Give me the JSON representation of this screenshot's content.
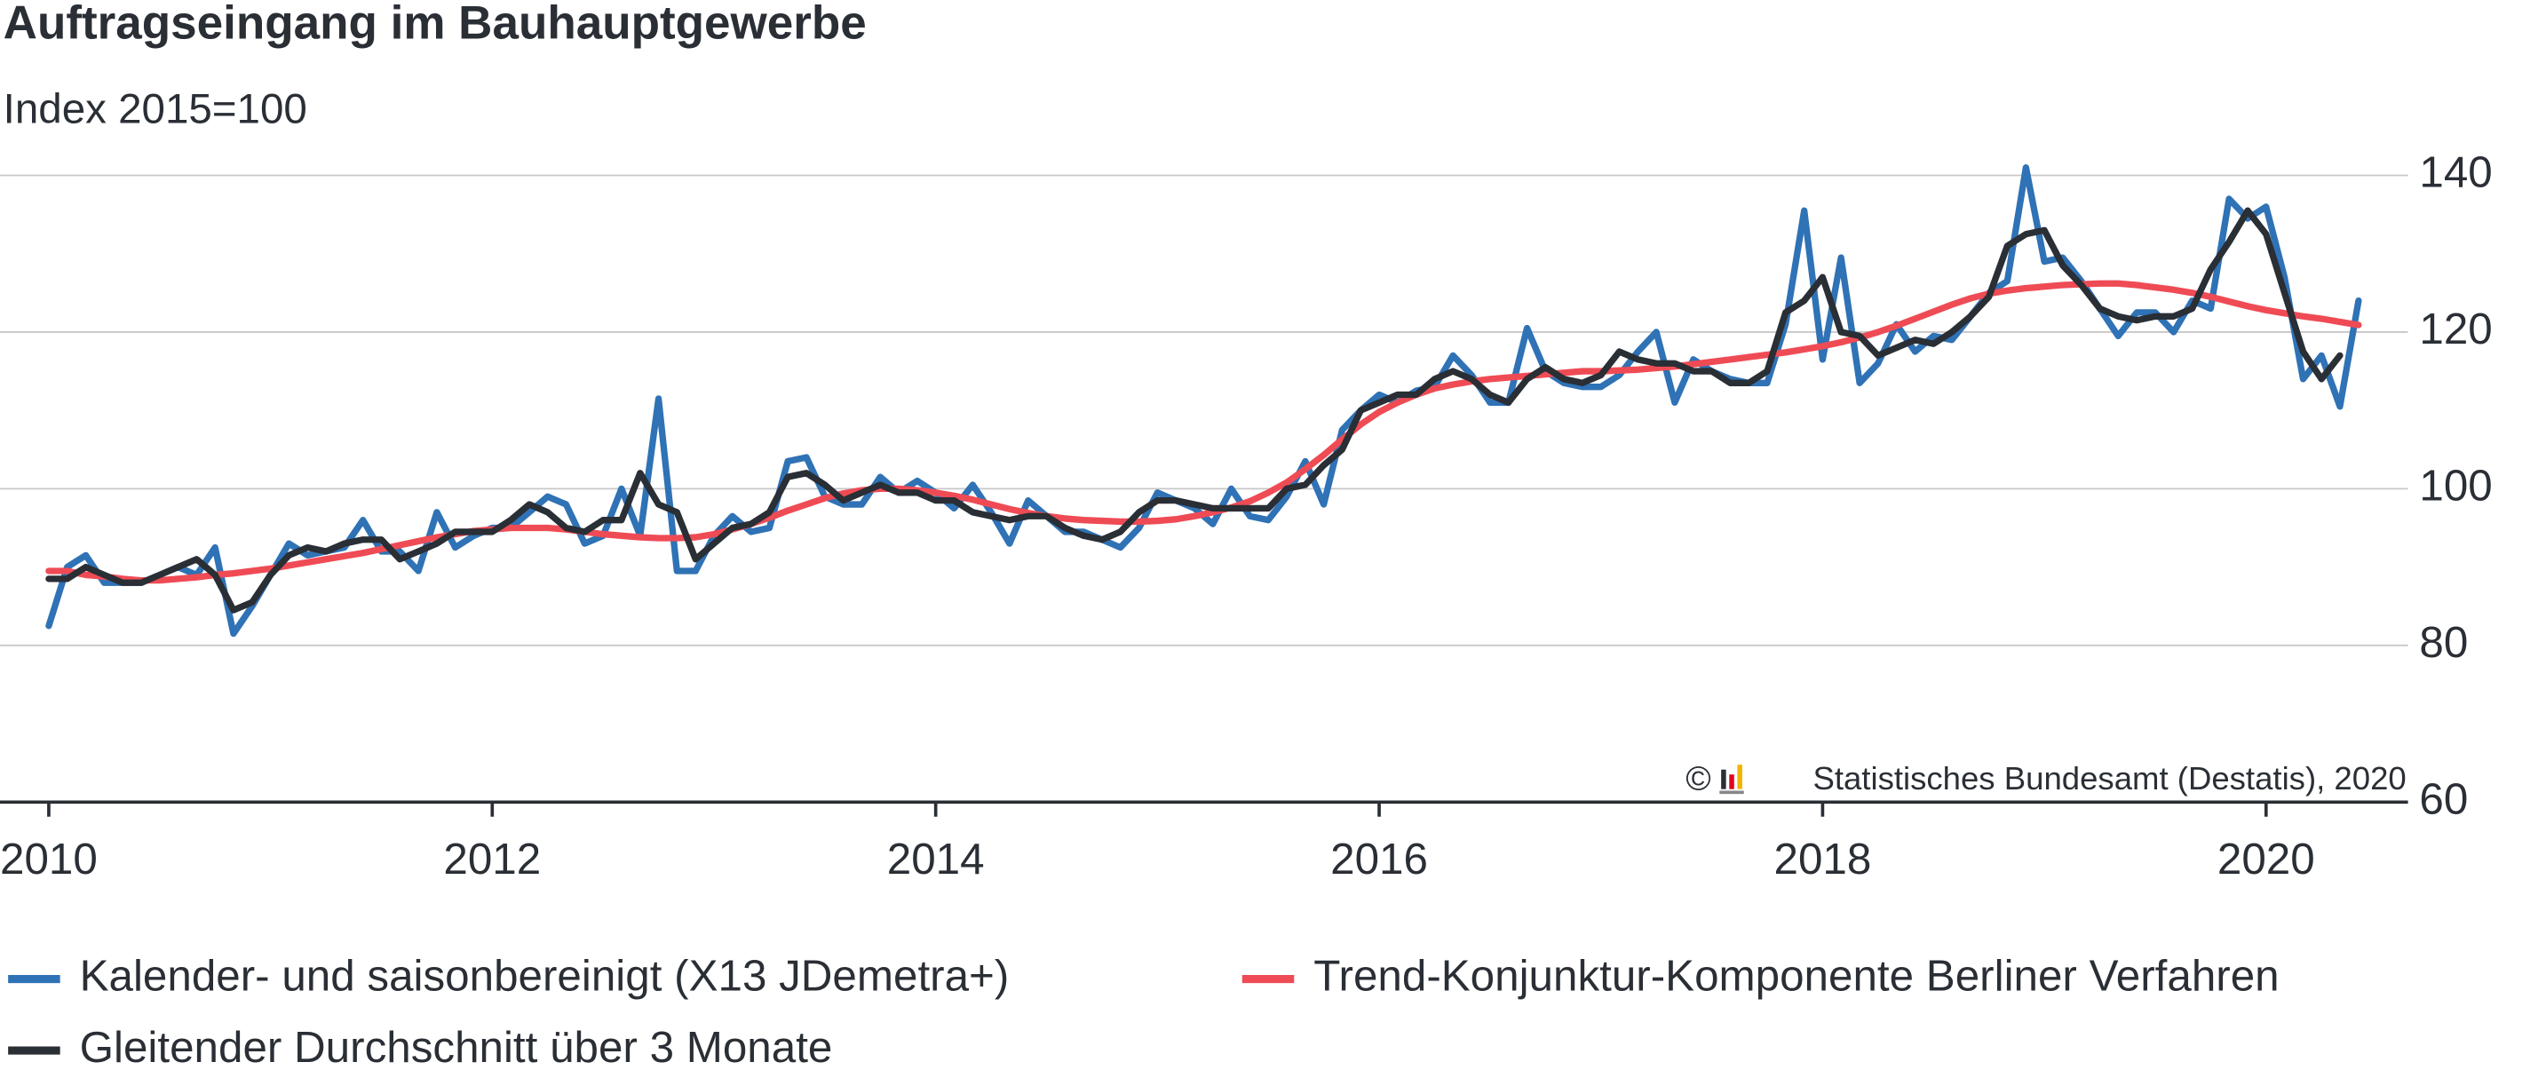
{
  "chart_data": {
    "type": "line",
    "title": "Auftragseingang im Bauhauptgewerbe",
    "subtitle": "Index 2015=100",
    "source_mark": "©",
    "source": "Statistisches Bundesamt (Destatis), 2020",
    "xlim": [
      2009.78,
      2020.64
    ],
    "xticks": [
      2010,
      2012,
      2014,
      2016,
      2018,
      2020
    ],
    "ylim": [
      60,
      140
    ],
    "yticks": [
      60,
      80,
      100,
      120,
      140
    ],
    "grid": true,
    "legend": "bottom",
    "x": [
      2010,
      2010.083,
      2010.167,
      2010.25,
      2010.333,
      2010.417,
      2010.5,
      2010.583,
      2010.667,
      2010.75,
      2010.833,
      2010.917,
      2011,
      2011.083,
      2011.167,
      2011.25,
      2011.333,
      2011.417,
      2011.5,
      2011.583,
      2011.667,
      2011.75,
      2011.833,
      2011.917,
      2012,
      2012.083,
      2012.167,
      2012.25,
      2012.333,
      2012.417,
      2012.5,
      2012.583,
      2012.667,
      2012.75,
      2012.833,
      2012.917,
      2013,
      2013.083,
      2013.167,
      2013.25,
      2013.333,
      2013.417,
      2013.5,
      2013.583,
      2013.667,
      2013.75,
      2013.833,
      2013.917,
      2014,
      2014.083,
      2014.167,
      2014.25,
      2014.333,
      2014.417,
      2014.5,
      2014.583,
      2014.667,
      2014.75,
      2014.833,
      2014.917,
      2015,
      2015.083,
      2015.167,
      2015.25,
      2015.333,
      2015.417,
      2015.5,
      2015.583,
      2015.667,
      2015.75,
      2015.833,
      2015.917,
      2016,
      2016.083,
      2016.167,
      2016.25,
      2016.333,
      2016.417,
      2016.5,
      2016.583,
      2016.667,
      2016.75,
      2016.833,
      2016.917,
      2017,
      2017.083,
      2017.167,
      2017.25,
      2017.333,
      2017.417,
      2017.5,
      2017.583,
      2017.667,
      2017.75,
      2017.833,
      2017.917,
      2018,
      2018.083,
      2018.167,
      2018.25,
      2018.333,
      2018.417,
      2018.5,
      2018.583,
      2018.667,
      2018.75,
      2018.833,
      2018.917,
      2019,
      2019.083,
      2019.167,
      2019.25,
      2019.333,
      2019.417,
      2019.5,
      2019.583,
      2019.667,
      2019.75,
      2019.833,
      2019.917,
      2020,
      2020.083,
      2020.167,
      2020.25,
      2020.333,
      2020.417
    ],
    "series": [
      {
        "name": "Kalender- und saisonbereinigt (X13 JDemetra+)",
        "color": "#2f72b5",
        "values": [
          82.5,
          90,
          91.5,
          88,
          88,
          88,
          89,
          90,
          89,
          92.5,
          81.5,
          85,
          89,
          93,
          91.5,
          92,
          92.5,
          96,
          92,
          92,
          89.5,
          97,
          92.5,
          94,
          95,
          95,
          97,
          99,
          98,
          93,
          94,
          100,
          94,
          111.5,
          89.5,
          89.5,
          94,
          96.5,
          94.5,
          95,
          103.5,
          104,
          99,
          98,
          98,
          101.5,
          99.5,
          101,
          99.5,
          97.5,
          100.5,
          97,
          93,
          98.5,
          96.5,
          94.5,
          94.5,
          93.5,
          92.5,
          95,
          99.5,
          98.5,
          97.5,
          95.5,
          100,
          96.5,
          96,
          99,
          103.5,
          98,
          107.5,
          110,
          112,
          111,
          112.5,
          113,
          117,
          114.5,
          111,
          111,
          120.5,
          115,
          113.5,
          113,
          113,
          114.5,
          117.5,
          120,
          111,
          116.5,
          115,
          114,
          113.5,
          113.5,
          121,
          135.5,
          116.5,
          129.5,
          113.5,
          116,
          121,
          117.5,
          119.5,
          119,
          122,
          125,
          126.5,
          141,
          129,
          129.5,
          126.5,
          123,
          119.5,
          122.5,
          122.5,
          120,
          124,
          123,
          137,
          134.5,
          136,
          127,
          114,
          117,
          110.5,
          124
        ]
      },
      {
        "name": "Trend-Konjunktur-Komponente Berliner Verfahren",
        "color": "#ef4b55",
        "values": [
          89.5,
          89.5,
          89,
          88.8,
          88.5,
          88.3,
          88.3,
          88.5,
          88.7,
          89,
          89.2,
          89.5,
          89.8,
          90.2,
          90.6,
          91,
          91.4,
          91.8,
          92.3,
          92.8,
          93.3,
          93.8,
          94.2,
          94.6,
          94.8,
          95,
          95,
          95,
          94.8,
          94.5,
          94.2,
          94,
          93.8,
          93.7,
          93.7,
          93.8,
          94.2,
          94.8,
          95.5,
          96.3,
          97.2,
          98,
          98.8,
          99.4,
          99.8,
          100,
          100,
          99.8,
          99.5,
          99.1,
          98.6,
          98,
          97.4,
          96.9,
          96.5,
          96.2,
          96,
          95.9,
          95.8,
          95.8,
          95.9,
          96.1,
          96.5,
          97,
          97.6,
          98.4,
          99.5,
          100.8,
          102.5,
          104.3,
          106.3,
          108.2,
          109.8,
          111,
          112,
          112.8,
          113.3,
          113.7,
          114,
          114.2,
          114.4,
          114.6,
          114.8,
          115,
          115,
          115.1,
          115.2,
          115.4,
          115.6,
          115.9,
          116.2,
          116.5,
          116.8,
          117.1,
          117.4,
          117.8,
          118.2,
          118.7,
          119.3,
          120,
          120.8,
          121.7,
          122.6,
          123.5,
          124.3,
          124.9,
          125.3,
          125.6,
          125.8,
          126,
          126.1,
          126.2,
          126.2,
          126,
          125.7,
          125.4,
          125,
          124.5,
          123.9,
          123.3,
          122.8,
          122.4,
          122,
          121.7,
          121.3,
          120.9
        ]
      },
      {
        "name": "Gleitender Durchschnitt über 3 Monate",
        "color": "#2a2e35",
        "values": [
          88.5,
          88.5,
          90,
          89,
          88,
          88,
          89,
          90,
          91,
          89,
          84.5,
          85.5,
          89,
          91.5,
          92.5,
          92,
          93,
          93.5,
          93.5,
          91,
          92,
          93,
          94.5,
          94.5,
          94.5,
          96,
          98,
          97,
          95,
          94.5,
          96,
          96,
          102,
          98,
          97,
          91,
          93,
          95,
          95.5,
          97,
          101.5,
          102,
          100.5,
          98.5,
          99.5,
          100.5,
          99.5,
          99.5,
          98.5,
          98.5,
          97,
          96.5,
          96,
          96.5,
          96.5,
          95,
          94,
          93.5,
          94.5,
          97,
          98.5,
          98.5,
          98,
          97.5,
          97.5,
          97.5,
          97.5,
          100,
          100.5,
          103,
          105,
          110,
          111,
          112,
          112,
          114,
          115,
          114,
          112,
          111,
          114,
          115.5,
          114,
          113.5,
          114.5,
          117.5,
          116.5,
          116,
          116,
          115,
          115,
          113.5,
          113.5,
          115,
          122.5,
          124,
          127,
          120,
          119.5,
          117,
          118,
          119,
          118.5,
          120,
          122,
          124.5,
          131,
          132.5,
          133,
          128.5,
          126,
          123,
          122,
          121.5,
          122,
          122,
          123,
          128,
          131.5,
          135.5,
          132.5,
          125,
          117.5,
          114,
          117,
          null
        ]
      }
    ]
  }
}
